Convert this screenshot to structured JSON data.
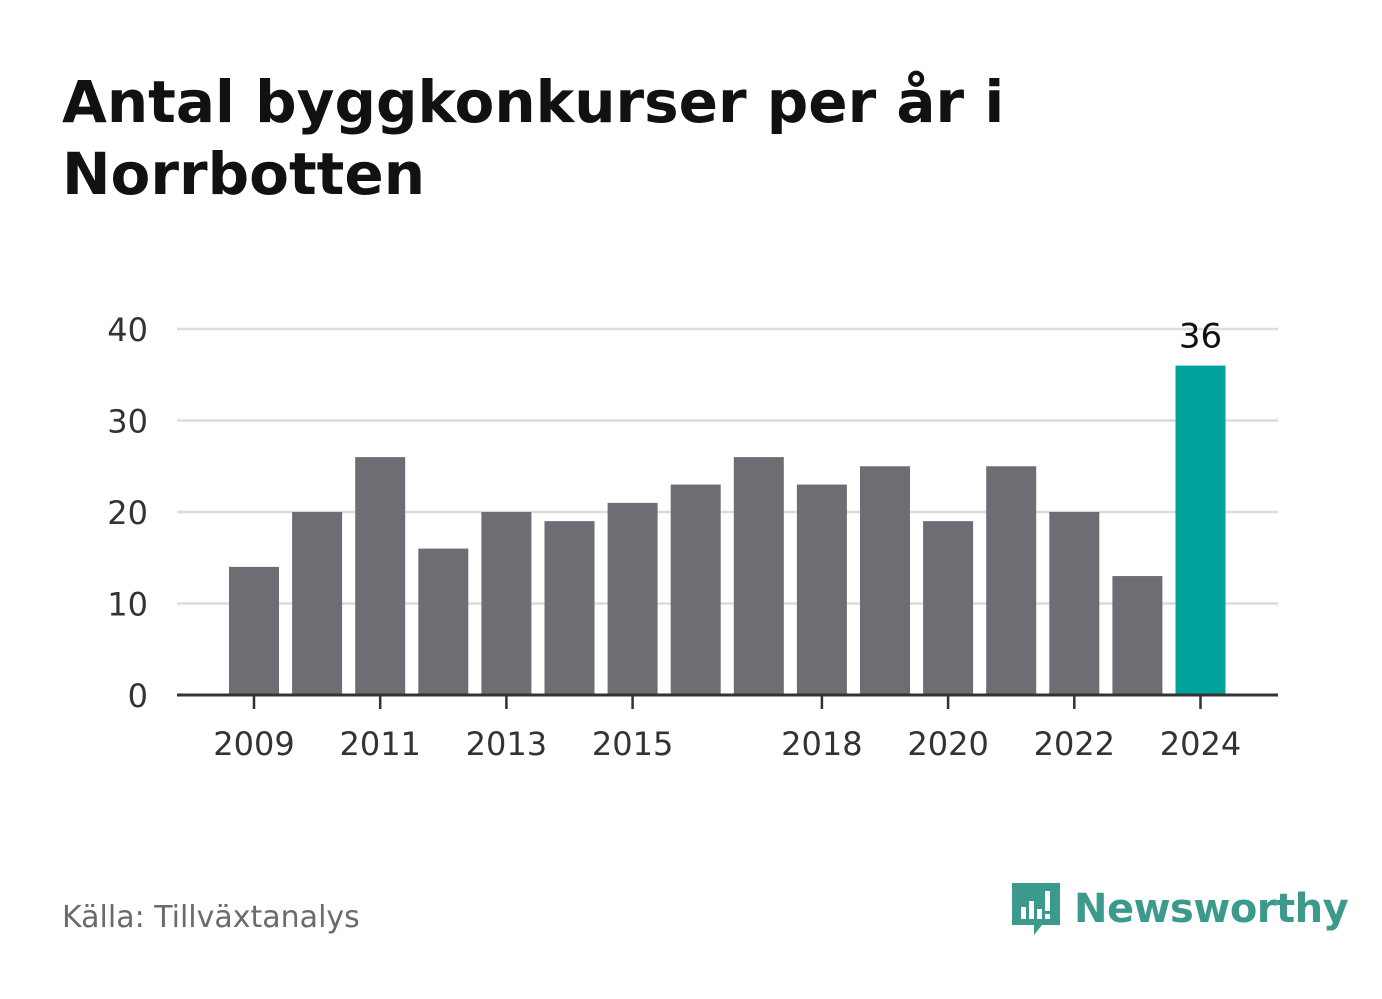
{
  "title": "Antal byggkonkurser per år i Norrbotten",
  "source": "Källa: Tillväxtanalys",
  "brand": {
    "name": "Newsworthy",
    "icon": "newsworthy-logo-icon",
    "color": "#3b9a8b"
  },
  "colors": {
    "bar": "#6e6d73",
    "highlight": "#00a39b",
    "grid": "#dcdcdc",
    "axis": "#333333"
  },
  "chart_data": {
    "type": "bar",
    "title": "Antal byggkonkurser per år i Norrbotten",
    "xlabel": "",
    "ylabel": "",
    "categories": [
      "2009",
      "2010",
      "2011",
      "2012",
      "2013",
      "2014",
      "2015",
      "2016",
      "2017",
      "2018",
      "2019",
      "2020",
      "2021",
      "2022",
      "2023",
      "2024"
    ],
    "values": [
      14,
      20,
      26,
      16,
      20,
      19,
      21,
      23,
      26,
      23,
      25,
      19,
      25,
      20,
      13,
      36
    ],
    "x_tick_labels": [
      "2009",
      "2011",
      "2013",
      "2015",
      "2018",
      "2020",
      "2022",
      "2024"
    ],
    "y_ticks": [
      0,
      10,
      20,
      30,
      40
    ],
    "ylim": [
      0,
      40
    ],
    "grid": true,
    "highlight": {
      "category": "2024",
      "label": "36"
    }
  }
}
